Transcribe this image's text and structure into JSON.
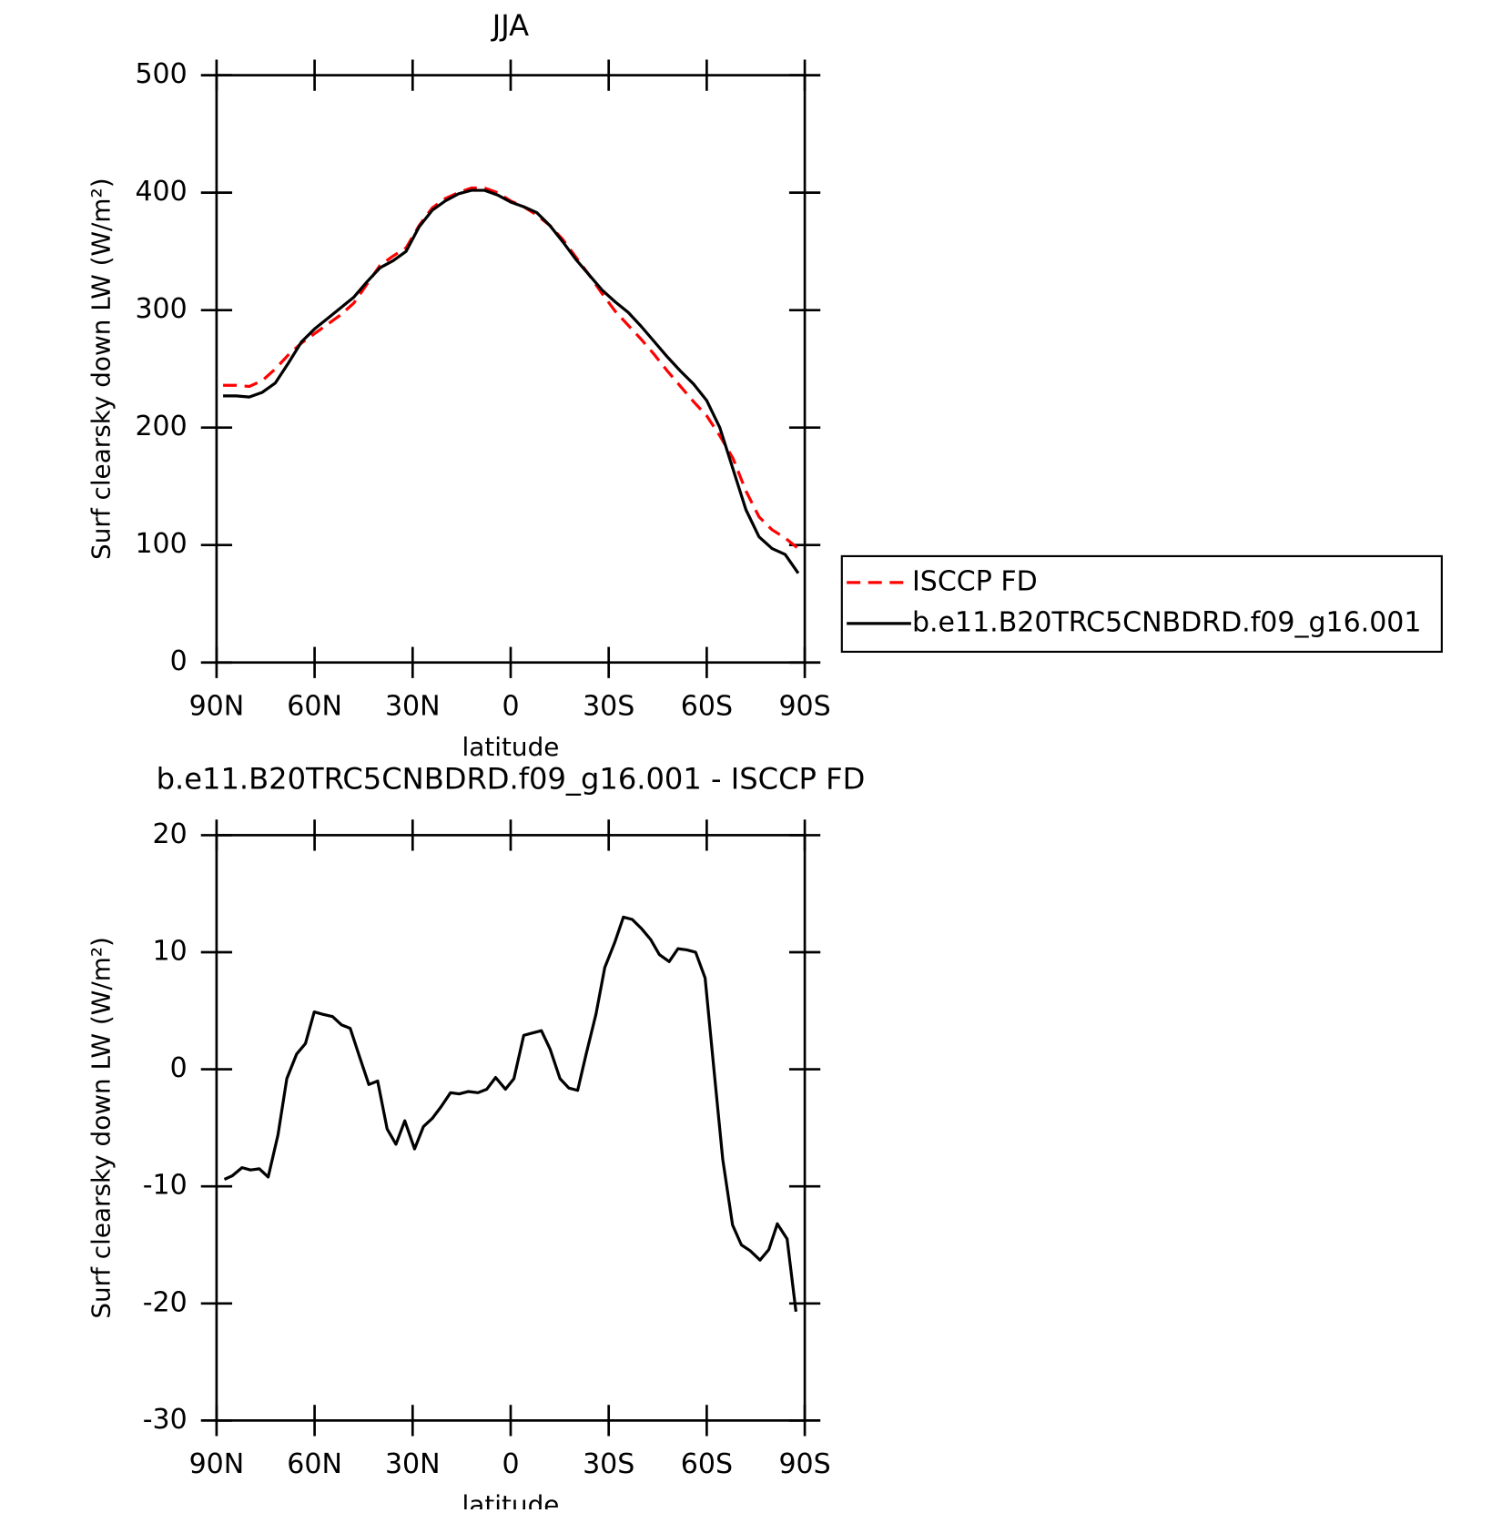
{
  "chart_data": [
    {
      "type": "line",
      "title": "JJA",
      "xlabel": "latitude",
      "ylabel": "Surf clearsky down LW (W/m²)",
      "x": [
        88,
        84,
        80,
        76,
        72,
        68,
        64,
        60,
        56,
        52,
        48,
        44,
        40,
        36,
        32,
        28,
        24,
        20,
        16,
        12,
        8,
        4,
        0,
        -4,
        -8,
        -12,
        -16,
        -20,
        -24,
        -28,
        -32,
        -36,
        -40,
        -44,
        -48,
        -52,
        -56,
        -60,
        -64,
        -68,
        -72,
        -76,
        -80,
        -84,
        -88
      ],
      "series": [
        {
          "name": "ISCCP FD",
          "color": "#ff0000",
          "line_style": "dashed",
          "values": [
            236,
            236,
            235,
            240,
            250,
            262,
            272,
            280,
            288,
            296,
            306,
            322,
            338,
            346,
            353,
            372,
            387,
            395,
            400,
            404,
            404,
            400,
            393,
            388,
            381,
            372,
            360,
            345,
            330,
            314,
            299,
            287,
            275,
            262,
            248,
            235,
            222,
            210,
            193,
            174,
            146,
            124,
            113,
            106,
            97
          ]
        },
        {
          "name": "b.e11.B20TRC5CNBDRD.f09_g16.001",
          "color": "#000000",
          "line_style": "solid",
          "values": [
            227,
            227,
            226,
            230,
            238,
            255,
            273,
            284,
            293,
            302,
            311,
            324,
            336,
            342,
            350,
            371,
            385,
            393,
            399,
            402,
            402,
            398,
            392,
            388,
            383,
            372,
            358,
            343,
            330,
            317,
            307,
            298,
            286,
            273,
            260,
            248,
            237,
            223,
            200,
            165,
            130,
            107,
            97,
            92,
            76
          ]
        }
      ],
      "xlim": [
        90,
        -90
      ],
      "xticks": [
        {
          "value": 90,
          "label": "90N"
        },
        {
          "value": 60,
          "label": "60N"
        },
        {
          "value": 30,
          "label": "30N"
        },
        0,
        {
          "value": -30,
          "label": "30S"
        },
        {
          "value": -60,
          "label": "60S"
        },
        {
          "value": -90,
          "label": "90S"
        }
      ],
      "ylim": [
        0,
        500
      ],
      "yticks": [
        0,
        100,
        200,
        300,
        400,
        500
      ],
      "legend": "right"
    },
    {
      "type": "line",
      "title": "b.e11.B20TRC5CNBDRD.f09_g16.001 - ISCCP FD",
      "xlabel": "latitude",
      "ylabel": "Surf clearsky down LW (W/m²)",
      "x": [
        87.6,
        85.2,
        82.2,
        79.6,
        76.9,
        74.2,
        71.2,
        68.5,
        65.5,
        62.8,
        60.1,
        57.5,
        54.5,
        51.8,
        49.1,
        46.4,
        43.4,
        40.7,
        37.8,
        35.1,
        32.4,
        29.4,
        26.7,
        24.0,
        21.3,
        18.4,
        15.7,
        13.0,
        10.0,
        7.3,
        4.6,
        1.6,
        -1.0,
        -4.0,
        -6.7,
        -9.4,
        -12.1,
        -15.1,
        -17.8,
        -20.5,
        -23.1,
        -26.1,
        -28.8,
        -31.8,
        -34.5,
        -37.2,
        -40.1,
        -42.8,
        -45.5,
        -48.5,
        -51.2,
        -53.9,
        -56.6,
        -59.5,
        -62.2,
        -64.9,
        -67.9,
        -70.6,
        -73.3,
        -76.3,
        -79.0,
        -81.6,
        -84.6,
        -87.3
      ],
      "series": [
        {
          "color": "#000000",
          "line_style": "solid",
          "values": [
            -9.4,
            -9.1,
            -8.4,
            -8.6,
            -8.5,
            -9.2,
            -5.6,
            -0.8,
            1.3,
            2.2,
            4.9,
            4.7,
            4.5,
            3.8,
            3.5,
            1.2,
            -1.3,
            -1.0,
            -5.1,
            -6.4,
            -4.4,
            -6.8,
            -4.9,
            -4.2,
            -3.2,
            -2.0,
            -2.1,
            -1.9,
            -2.0,
            -1.7,
            -0.7,
            -1.7,
            -0.8,
            2.9,
            3.1,
            3.3,
            1.7,
            -0.8,
            -1.6,
            -1.8,
            1.3,
            4.7,
            8.7,
            10.8,
            13.0,
            12.8,
            12.0,
            11.1,
            9.8,
            9.2,
            10.3,
            10.2,
            10.0,
            7.8,
            0,
            -7.7,
            -13.3,
            -15.0,
            -15.5,
            -16.3,
            -15.4,
            -13.2,
            -14.5,
            -20.7
          ]
        }
      ],
      "xlim": [
        90,
        -90
      ],
      "xticks": [
        {
          "value": 90,
          "label": "90N"
        },
        {
          "value": 60,
          "label": "60N"
        },
        {
          "value": 30,
          "label": "30N"
        },
        0,
        {
          "value": -30,
          "label": "30S"
        },
        {
          "value": -60,
          "label": "60S"
        },
        {
          "value": -90,
          "label": "90S"
        }
      ],
      "ylim": [
        -30,
        20
      ],
      "yticks": [
        -30,
        -20,
        -10,
        0,
        10,
        20
      ]
    }
  ]
}
